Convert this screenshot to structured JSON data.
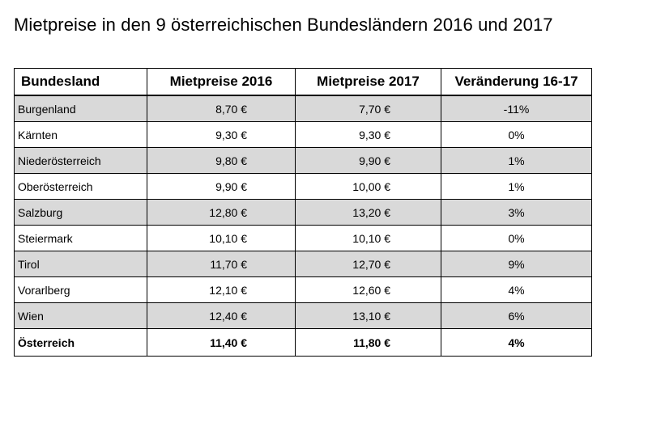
{
  "title": "Mietpreise in den 9 österreichischen Bundesländern 2016 und 2017",
  "colors": {
    "shade": "#d9d9d9",
    "border": "#000000"
  },
  "chart_data": {
    "type": "table",
    "columns": [
      "Bundesland",
      "Mietpreise 2016",
      "Mietpreise 2017",
      "Veränderung 16-17"
    ],
    "rows": [
      [
        "Burgenland",
        "8,70 €",
        "7,70 €",
        "-11%"
      ],
      [
        "Kärnten",
        "9,30 €",
        "9,30 €",
        "0%"
      ],
      [
        "Niederösterreich",
        "9,80 €",
        "9,90 €",
        "1%"
      ],
      [
        "Oberösterreich",
        "9,90 €",
        "10,00 €",
        "1%"
      ],
      [
        "Salzburg",
        "12,80 €",
        "13,20 €",
        "3%"
      ],
      [
        "Steiermark",
        "10,10 €",
        "10,10 €",
        "0%"
      ],
      [
        "Tirol",
        "11,70 €",
        "12,70 €",
        "9%"
      ],
      [
        "Vorarlberg",
        "12,10 €",
        "12,60 €",
        "4%"
      ],
      [
        "Wien",
        "12,40 €",
        "13,10 €",
        "6%"
      ]
    ],
    "total": [
      "Österreich",
      "11,40 €",
      "11,80 €",
      "4%"
    ]
  }
}
